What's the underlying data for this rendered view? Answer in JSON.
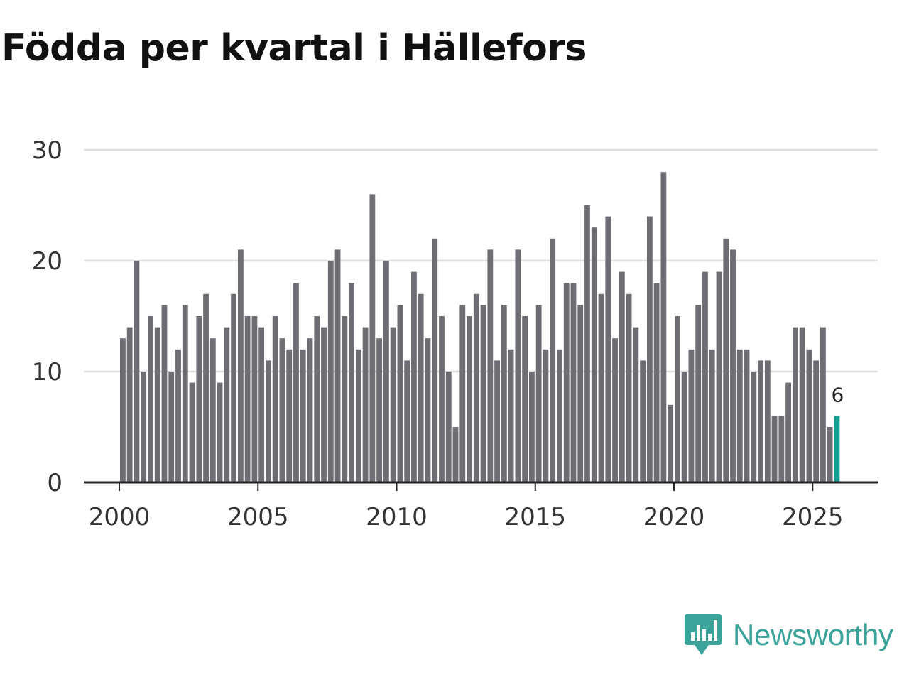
{
  "title": "Födda per kvartal i Hällefors",
  "brand": {
    "name": "Newsworthy",
    "icon": "newsworthy-logo-icon",
    "color": "#3aa39a"
  },
  "colors": {
    "bar": "#6e6d73",
    "highlight": "#169e93",
    "grid": "#dddddd",
    "axis": "#222222"
  },
  "chart_data": {
    "type": "bar",
    "title": "Födda per kvartal i Hällefors",
    "xlabel": "",
    "ylabel": "",
    "x_start": 2000,
    "x_end": 2026.5,
    "periods_per_year": 4,
    "ylim": [
      0,
      30
    ],
    "y_ticks": [
      0,
      10,
      20,
      30
    ],
    "x_ticks": [
      2000,
      2005,
      2010,
      2015,
      2020,
      2025
    ],
    "grid": true,
    "values": [
      13,
      14,
      20,
      10,
      15,
      14,
      16,
      10,
      12,
      16,
      9,
      15,
      17,
      13,
      9,
      14,
      17,
      21,
      15,
      15,
      14,
      11,
      15,
      13,
      12,
      18,
      12,
      13,
      15,
      14,
      20,
      21,
      15,
      18,
      12,
      14,
      26,
      13,
      20,
      14,
      16,
      11,
      19,
      17,
      13,
      22,
      15,
      10,
      5,
      16,
      15,
      17,
      16,
      21,
      11,
      16,
      12,
      21,
      15,
      10,
      16,
      12,
      22,
      12,
      18,
      18,
      16,
      25,
      23,
      17,
      24,
      13,
      19,
      17,
      14,
      11,
      24,
      18,
      28,
      7,
      15,
      10,
      12,
      16,
      19,
      12,
      19,
      22,
      21,
      12,
      12,
      10,
      11,
      11,
      6,
      6,
      9,
      14,
      14,
      12,
      11,
      14,
      5,
      6
    ],
    "highlight": {
      "index": 103,
      "label": "6"
    }
  }
}
